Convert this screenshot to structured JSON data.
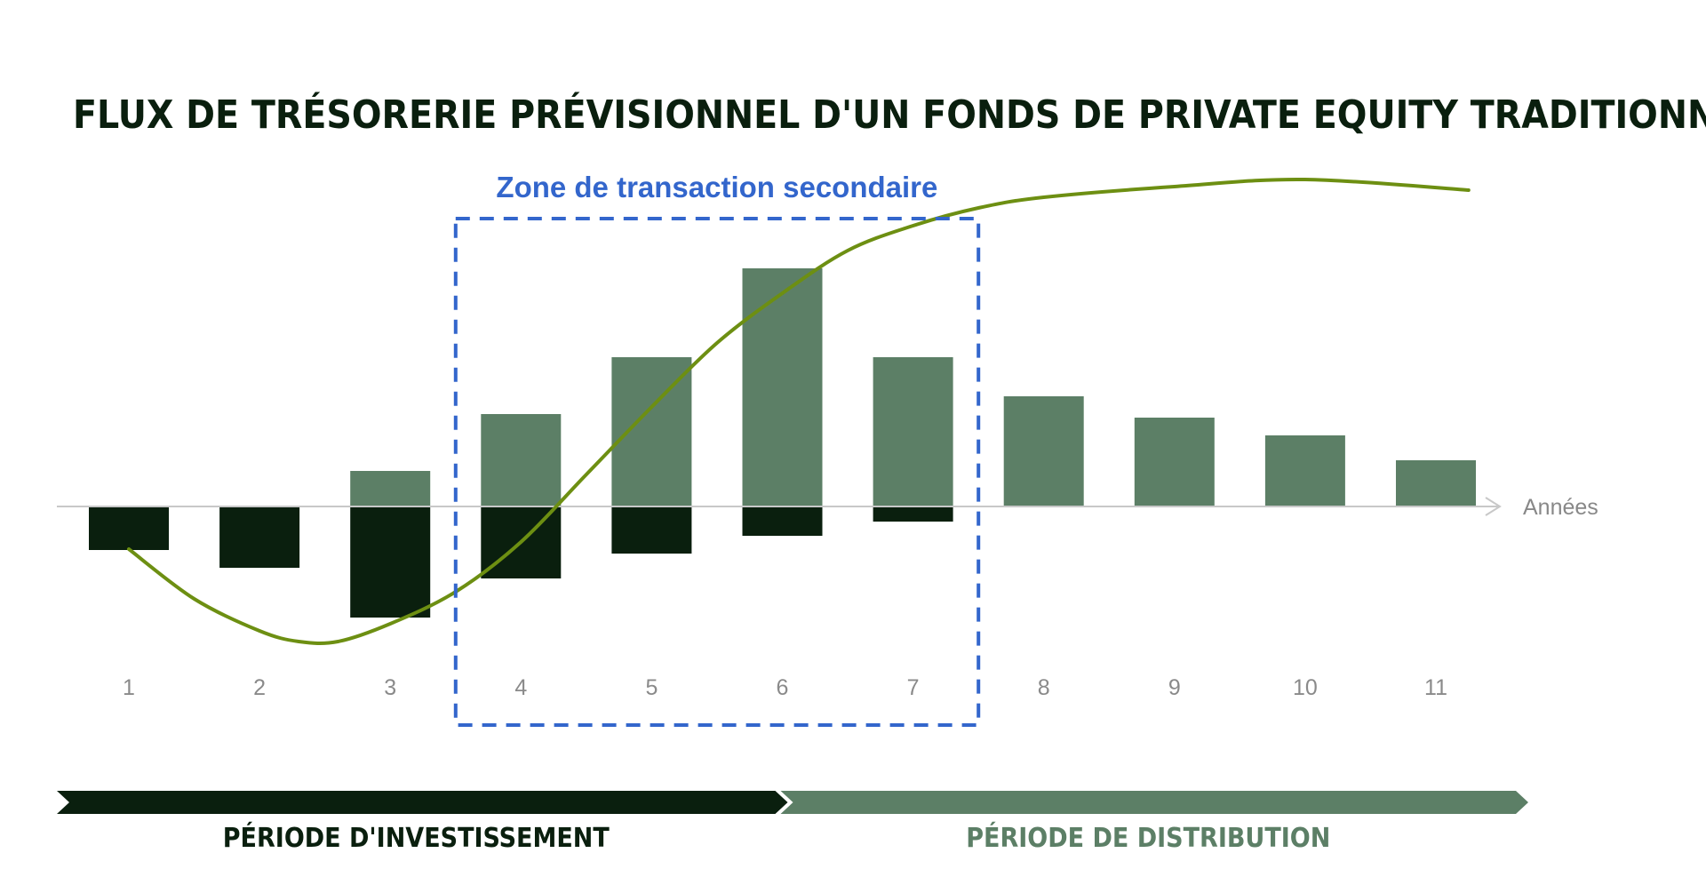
{
  "chart_data": {
    "type": "bar",
    "title": "FLUX DE TRÉSORERIE PRÉVISIONNEL D'UN FONDS DE PRIVATE EQUITY TRADITIONNEL",
    "categories": [
      "1",
      "2",
      "3",
      "4",
      "5",
      "6",
      "7",
      "8",
      "9",
      "10",
      "11"
    ],
    "xlabel": "Années",
    "ylabel": "",
    "series": [
      {
        "values": [
          0,
          0,
          1.0,
          2.6,
          4.2,
          6.7,
          4.2,
          3.1,
          2.5,
          2.0,
          1.3
        ]
      },
      {
        "values": [
          -1.2,
          -1.7,
          -3.1,
          -2.0,
          -1.3,
          -0.8,
          -0.4,
          0,
          0,
          0,
          0
        ]
      }
    ],
    "cumulative_curve": {
      "x": [
        1,
        1.5,
        2,
        2.3,
        2.6,
        3,
        3.5,
        4,
        4.5,
        5,
        5.5,
        6,
        6.5,
        7,
        7.5,
        8,
        9,
        10,
        11.25
      ],
      "y": [
        -1.2,
        -2.6,
        -3.5,
        -3.8,
        -3.8,
        -3.3,
        -2.4,
        -1.0,
        0.9,
        2.8,
        4.6,
        6.0,
        7.2,
        7.9,
        8.4,
        8.7,
        9.0,
        9.2,
        8.9
      ]
    },
    "ylim": [
      -5,
      9.5
    ],
    "colors": {
      "distribution_bar": "#5c7f66",
      "investment_bar": "#0a1f0e",
      "curve": "#6d8f12",
      "zone": "#3366cc",
      "axis": "#c8c8c8"
    },
    "zone": {
      "label": "Zone de transaction secondaire",
      "start_category": "4",
      "end_category": "7"
    },
    "periods": [
      {
        "label": "PÉRIODE D'INVESTISSEMENT",
        "color": "#0a1f0e",
        "end_category": "6"
      },
      {
        "label": "PÉRIODE DE DISTRIBUTION",
        "color": "#5c7f66",
        "end_category": "11"
      }
    ],
    "grid": false,
    "legend": "none"
  }
}
